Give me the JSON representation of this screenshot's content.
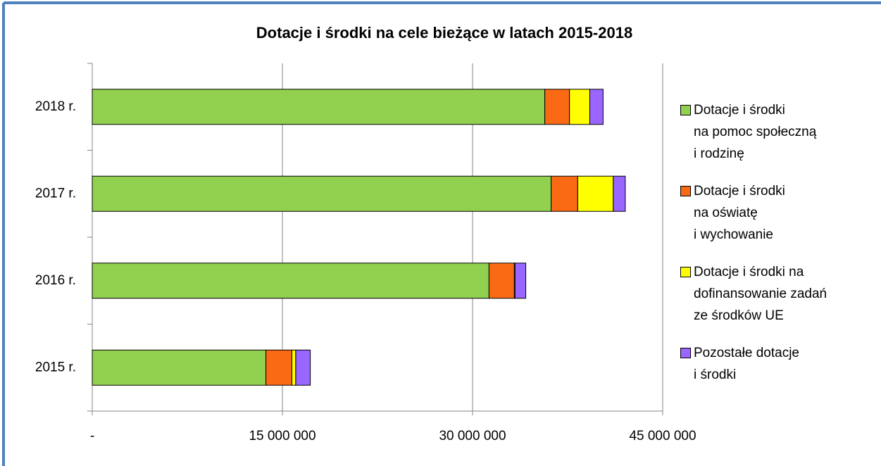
{
  "chart_data": {
    "type": "stacked-barh",
    "title": "Dotacje i środki na cele bieżące w latach 2015-2018",
    "categories": [
      "2015 r.",
      "2016 r.",
      "2017 r.",
      "2018 r."
    ],
    "series": [
      {
        "name": "Dotacje i środki\nna pomoc społeczną\ni rodzinę",
        "color": "#92d050",
        "values": [
          13700000,
          31300000,
          36200000,
          35700000
        ]
      },
      {
        "name": "Dotacje i środki\nna oświatę\ni wychowanie",
        "color": "#fa6a14",
        "values": [
          2050000,
          2000000,
          2100000,
          1950000
        ]
      },
      {
        "name": "Dotacje i środki na\ndofinansowanie zadań\nze środków UE",
        "color": "#ffff00",
        "values": [
          300000,
          50000,
          2800000,
          1600000
        ]
      },
      {
        "name": "Pozostałe dotacje\ni środki",
        "color": "#9966ff",
        "values": [
          1150000,
          850000,
          950000,
          1050000
        ]
      }
    ],
    "xlim": [
      0,
      45000000
    ],
    "xticks": [
      {
        "value": 0,
        "label": "-"
      },
      {
        "value": 15000000,
        "label": "15 000 000"
      },
      {
        "value": 30000000,
        "label": "30 000 000"
      },
      {
        "value": 45000000,
        "label": "45 000 000"
      }
    ],
    "grid": true,
    "legend": "right"
  }
}
